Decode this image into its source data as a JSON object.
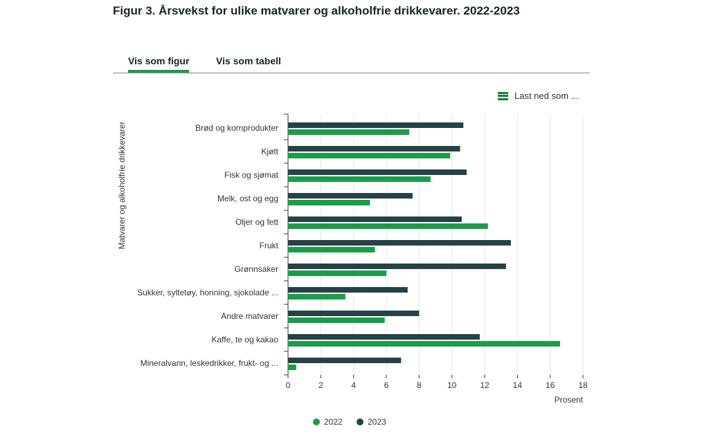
{
  "title": "Figur 3. Årsvekst for ulike matvarer og alkoholfrie drikkevarer. 2022-2023",
  "tabs": [
    {
      "label": "Vis som figur",
      "active": true
    },
    {
      "label": "Vis som tabell",
      "active": false
    }
  ],
  "download": {
    "label": "Last ned som ...",
    "icon": "menu-icon"
  },
  "colors": {
    "s2022": "#1a9d49",
    "s2023": "#274247",
    "accent": "#1a9d49"
  },
  "chart_data": {
    "type": "bar",
    "orientation": "horizontal",
    "ylabel": "Matvarer og alkoholfrie drikkevarer",
    "xlabel": "Prosent",
    "xlim": [
      0,
      18
    ],
    "xticks": [
      0,
      2,
      4,
      6,
      8,
      10,
      12,
      14,
      16,
      18
    ],
    "grid": true,
    "legend": "bottom",
    "categories": [
      "Brød og kornprodukter",
      "Kjøtt",
      "Fisk og sjømat",
      "Melk, ost og egg",
      "Oljer og fett",
      "Frukt",
      "Grønnsaker",
      "Sukker, syltetøy, honning, sjokolade ...",
      "Andre matvarer",
      "Kaffe, te og kakao",
      "Mineralvann, leskedrikker, frukt- og ..."
    ],
    "series": [
      {
        "name": "2023",
        "values": [
          10.7,
          10.5,
          10.9,
          7.6,
          10.6,
          13.6,
          13.3,
          7.3,
          8.0,
          11.7,
          6.9
        ]
      },
      {
        "name": "2022",
        "values": [
          7.4,
          9.9,
          8.7,
          5.0,
          12.2,
          5.3,
          6.0,
          3.5,
          5.9,
          16.6,
          0.5
        ]
      }
    ],
    "legend_order": [
      "2022",
      "2023"
    ]
  }
}
